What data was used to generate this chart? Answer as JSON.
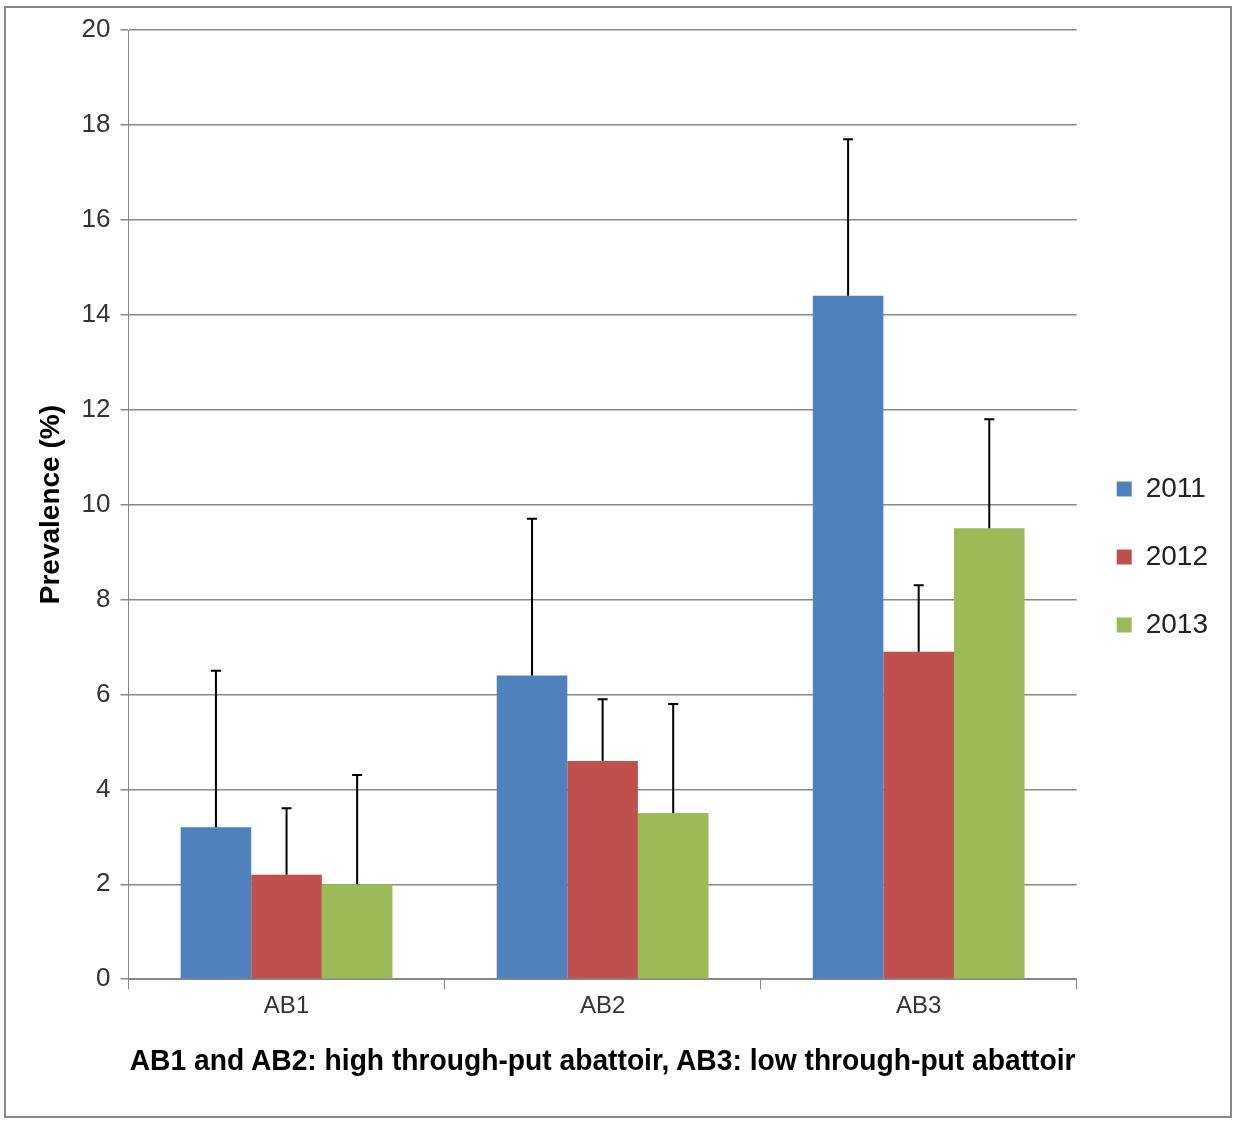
{
  "chart_data": {
    "type": "bar",
    "xlabel": "AB1 and AB2: high through-put abattoir, AB3: low through-put abattoir",
    "ylabel": "Prevalence (%)",
    "categories": [
      "AB1",
      "AB2",
      "AB3"
    ],
    "series": [
      {
        "name": "2011",
        "color": "#4f81bd",
        "values": [
          3.2,
          6.4,
          14.4
        ],
        "errors": [
          [
            3.2,
            6.5
          ],
          [
            6.4,
            9.7
          ],
          [
            14.4,
            17.7
          ]
        ]
      },
      {
        "name": "2012",
        "color": "#c0504d",
        "values": [
          2.2,
          4.6,
          6.9
        ],
        "errors": [
          [
            2.2,
            3.6
          ],
          [
            4.6,
            5.9
          ],
          [
            6.9,
            8.3
          ]
        ]
      },
      {
        "name": "2013",
        "color": "#9bbb59",
        "values": [
          2.0,
          3.5,
          9.5
        ],
        "errors": [
          [
            2.0,
            4.3
          ],
          [
            3.5,
            5.8
          ],
          [
            9.5,
            11.8
          ]
        ]
      }
    ],
    "ylim": [
      0,
      20
    ],
    "yticks": [
      0,
      2,
      4,
      6,
      8,
      10,
      12,
      14,
      16,
      18,
      20
    ],
    "grid": "y",
    "legend": "right"
  }
}
